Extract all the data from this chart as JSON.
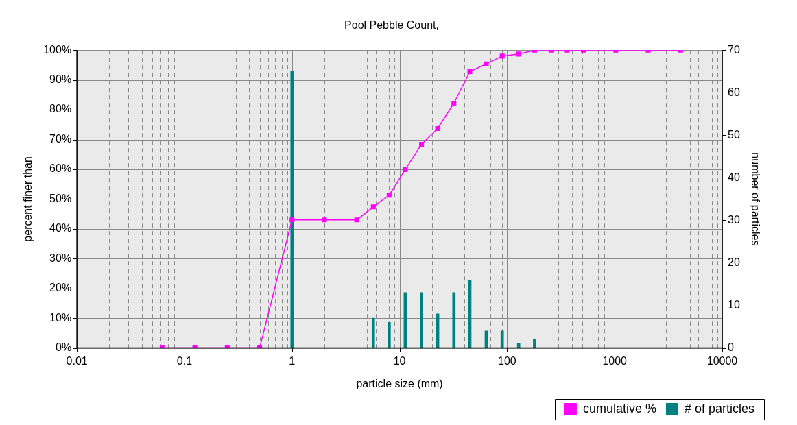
{
  "chart_data": {
    "type": "line",
    "title": "Pool Pebble Count,",
    "xlabel": "particle size (mm)",
    "ylabel": "percent finer than",
    "y2label": "number of particles",
    "log": "x",
    "grid": true,
    "legend": "bottom right",
    "marker": "square",
    "line_style": "solid",
    "xlim": [
      0.01,
      10000
    ],
    "xticks": [
      0.01,
      {
        "value": 0.02,
        "label": null
      },
      {
        "value": 0.03,
        "label": null
      },
      {
        "value": 0.04,
        "label": null
      },
      {
        "value": 0.05,
        "label": null
      },
      {
        "value": 0.06,
        "label": null
      },
      {
        "value": 0.07,
        "label": null
      },
      {
        "value": 0.08,
        "label": null
      },
      {
        "value": 0.09,
        "label": null
      },
      0.1,
      {
        "value": 0.2,
        "label": null
      },
      {
        "value": 0.3,
        "label": null
      },
      {
        "value": 0.4,
        "label": null
      },
      {
        "value": 0.5,
        "label": null
      },
      {
        "value": 0.6,
        "label": null
      },
      {
        "value": 0.7,
        "label": null
      },
      {
        "value": 0.8,
        "label": null
      },
      {
        "value": 0.9,
        "label": null
      },
      1,
      {
        "value": 2,
        "label": null
      },
      {
        "value": 3,
        "label": null
      },
      {
        "value": 4,
        "label": null
      },
      {
        "value": 5,
        "label": null
      },
      {
        "value": 6,
        "label": null
      },
      {
        "value": 7,
        "label": null
      },
      {
        "value": 8,
        "label": null
      },
      {
        "value": 9,
        "label": null
      },
      10,
      {
        "value": 20,
        "label": null
      },
      {
        "value": 30,
        "label": null
      },
      {
        "value": 40,
        "label": null
      },
      {
        "value": 50,
        "label": null
      },
      {
        "value": 60,
        "label": null
      },
      {
        "value": 70,
        "label": null
      },
      {
        "value": 80,
        "label": null
      },
      {
        "value": 90,
        "label": null
      },
      100,
      {
        "value": 200,
        "label": null
      },
      {
        "value": 300,
        "label": null
      },
      {
        "value": 400,
        "label": null
      },
      {
        "value": 500,
        "label": null
      },
      {
        "value": 600,
        "label": null
      },
      {
        "value": 700,
        "label": null
      },
      {
        "value": 800,
        "label": null
      },
      {
        "value": 900,
        "label": null
      },
      1000,
      {
        "value": 2000,
        "label": null
      },
      {
        "value": 3000,
        "label": null
      },
      {
        "value": 4000,
        "label": null
      },
      {
        "value": 5000,
        "label": null
      },
      {
        "value": 6000,
        "label": null
      },
      {
        "value": 7000,
        "label": null
      },
      {
        "value": 8000,
        "label": null
      },
      {
        "value": 9000,
        "label": null
      },
      10000
    ],
    "ylim": [
      0,
      100
    ],
    "yticks": [
      {
        "value": 0,
        "label": "0%"
      },
      {
        "value": 10,
        "label": "10%"
      },
      {
        "value": 20,
        "label": "20%"
      },
      {
        "value": 30,
        "label": "30%"
      },
      {
        "value": 40,
        "label": "40%"
      },
      {
        "value": 50,
        "label": "50%"
      },
      {
        "value": 60,
        "label": "60%"
      },
      {
        "value": 70,
        "label": "70%"
      },
      {
        "value": 80,
        "label": "80%"
      },
      {
        "value": 90,
        "label": "90%"
      },
      {
        "value": 100,
        "label": "100%"
      }
    ],
    "y2lim": [
      0,
      70
    ],
    "y2ticks": [
      0,
      10,
      20,
      30,
      40,
      50,
      60,
      70
    ],
    "series": [
      {
        "name": "cumulative %",
        "color": "#ff00ff",
        "x": [
          0.062,
          0.125,
          0.25,
          0.5,
          1,
          2,
          4,
          5.7,
          8,
          11.3,
          16,
          22.6,
          32,
          45,
          64,
          90,
          128,
          180,
          256,
          362,
          512,
          1024,
          2048,
          4096
        ],
        "values": [
          0,
          0,
          0,
          0,
          43,
          43,
          43,
          47.4,
          51.3,
          59.9,
          68.4,
          73.7,
          82.2,
          92.8,
          95.4,
          98,
          98.7,
          100,
          100,
          100,
          100,
          100,
          100,
          100
        ]
      },
      {
        "name": "# of particles",
        "type": "bar",
        "axis": "y2",
        "color": "#008080",
        "x": [
          1,
          5.7,
          8,
          11.3,
          16,
          22.6,
          32,
          45,
          64,
          90,
          128,
          180
        ],
        "values": [
          65,
          7,
          6,
          13,
          13,
          8,
          13,
          16,
          4,
          4,
          1,
          2
        ]
      }
    ]
  }
}
